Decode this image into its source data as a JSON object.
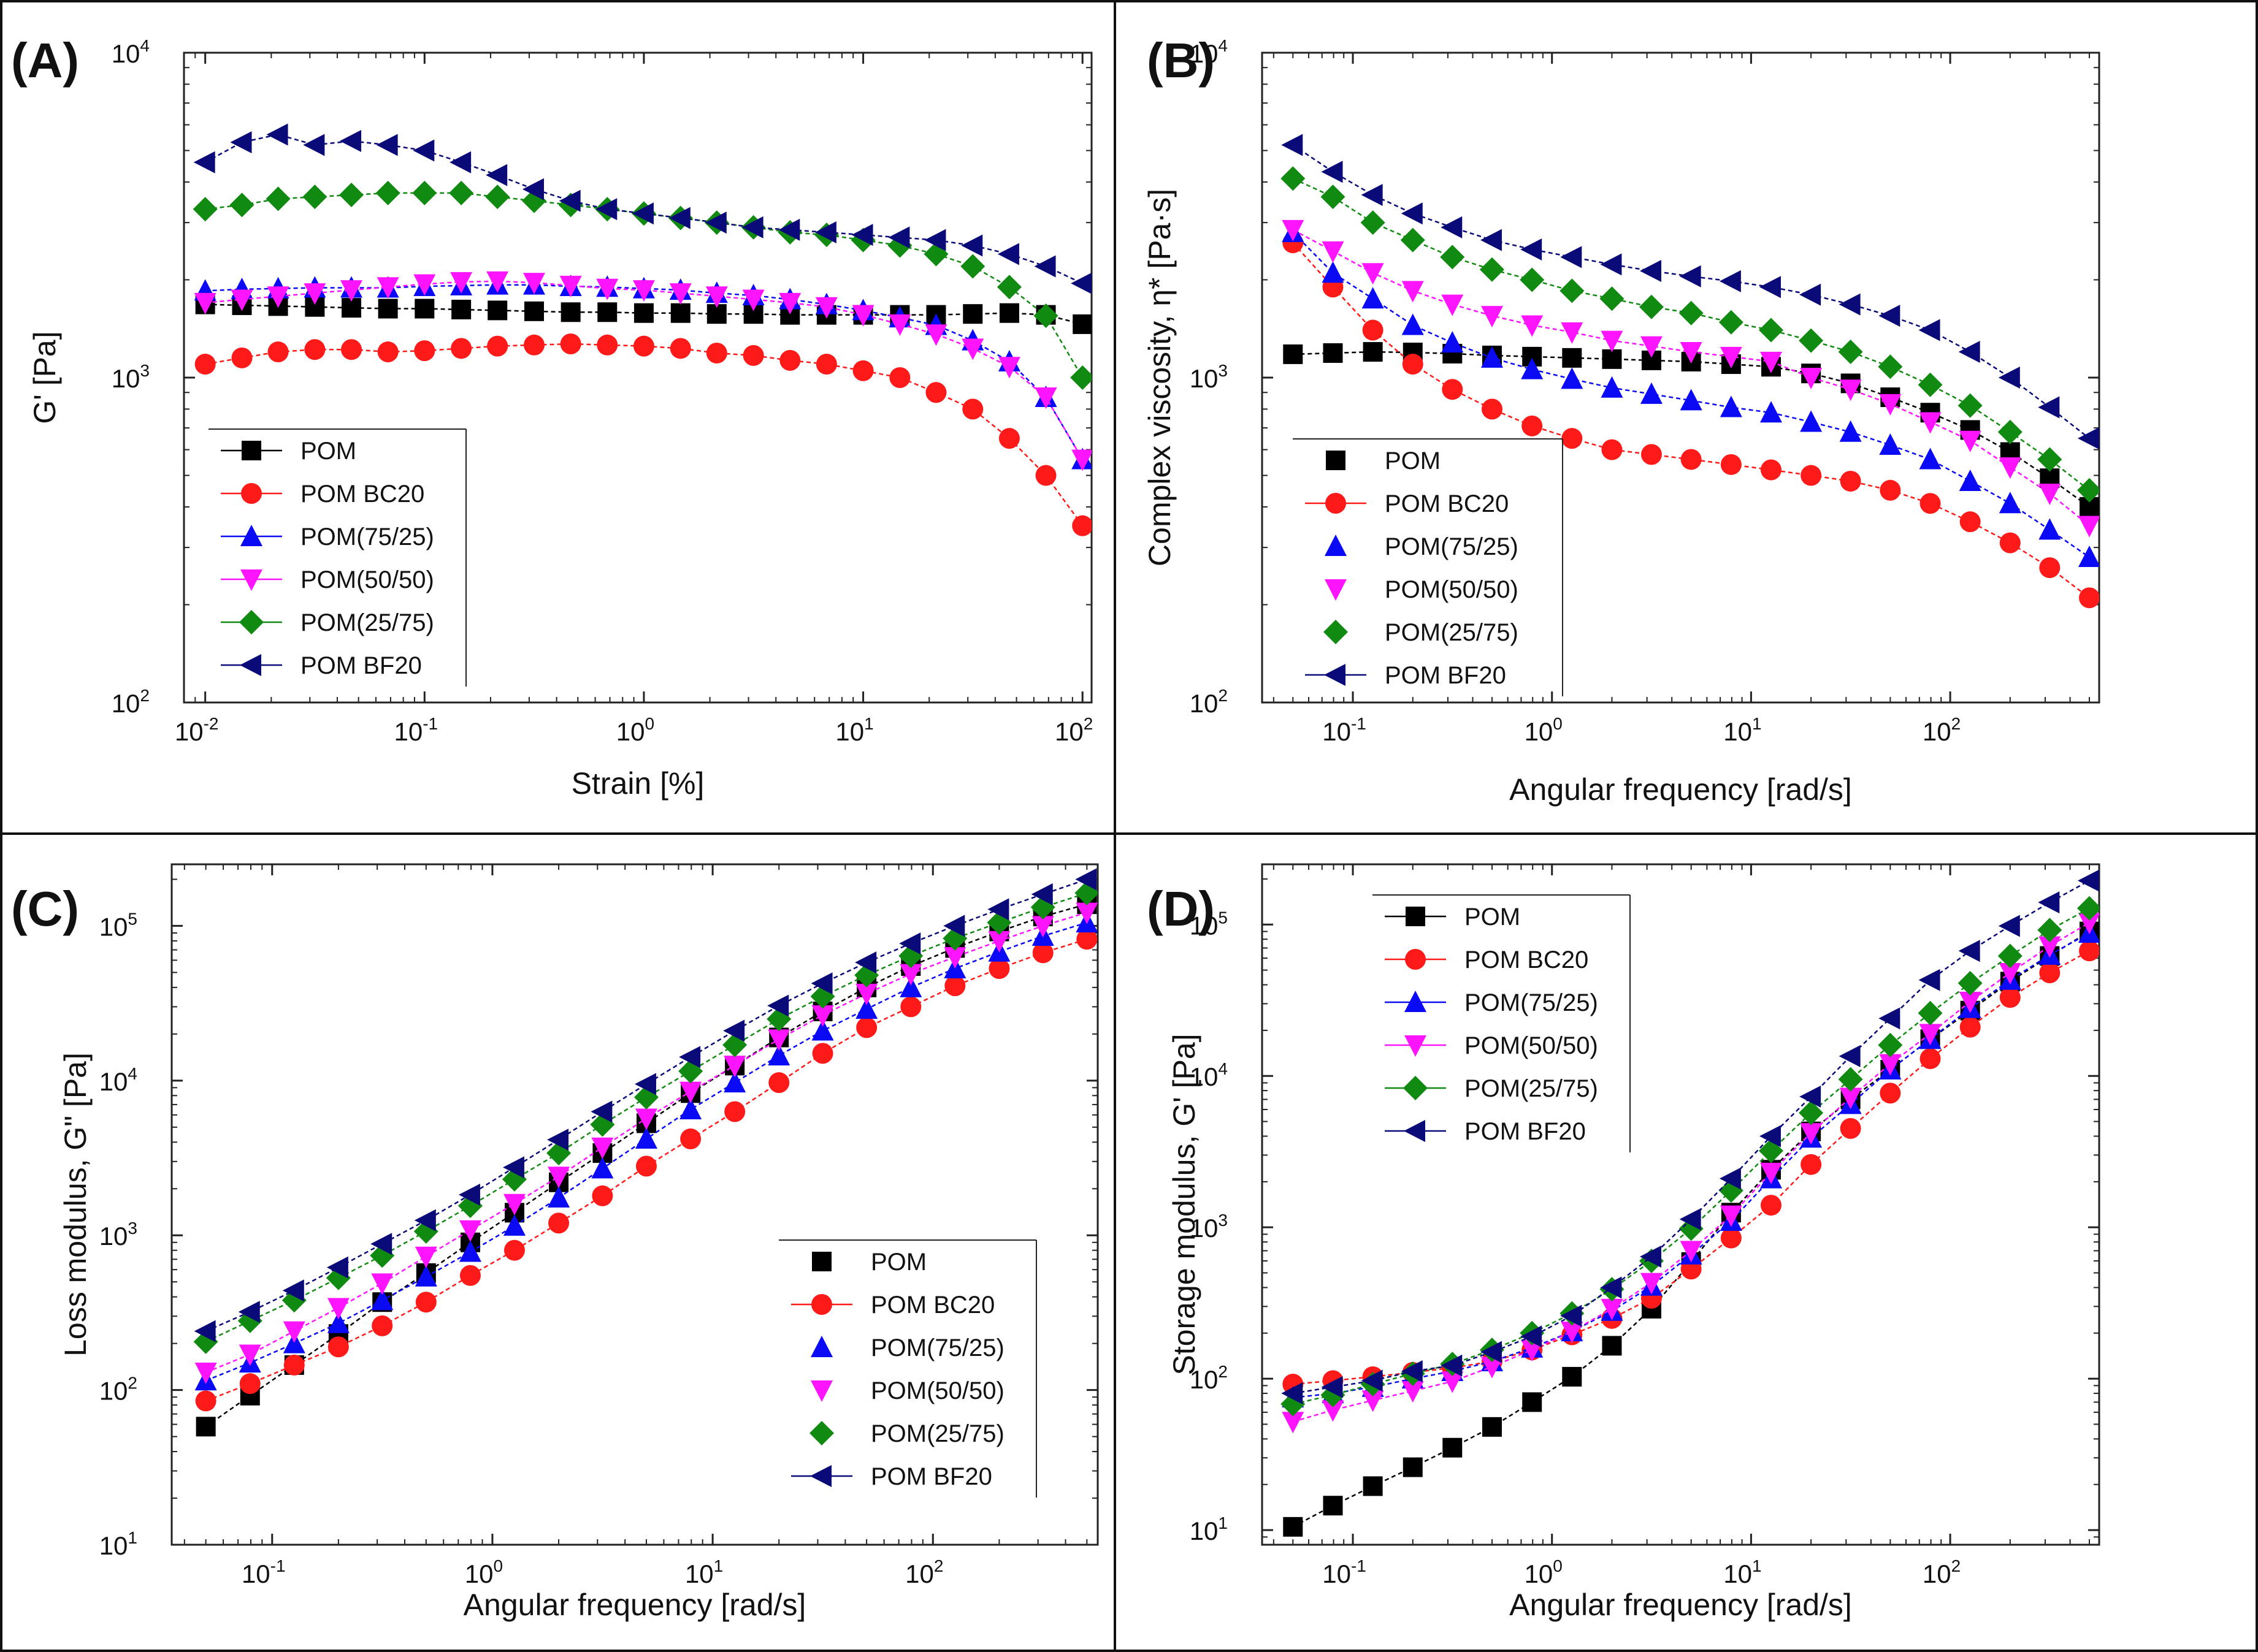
{
  "colors": {
    "POM": "#000000",
    "POM BC20": "#ff1a1a",
    "POM(75/25)": "#0a0af5",
    "POM(50/50)": "#ff14ff",
    "POM(25/75)": "#118a11",
    "POM BF20": "#0a0a78"
  },
  "chart_data": [
    {
      "type": "line",
      "panel": "(A)",
      "xlabel": "Strain [%]",
      "ylabel": "G' [Pa]",
      "xscale": "log",
      "yscale": "log",
      "xlim": [
        0.008,
        110
      ],
      "ylim": [
        100,
        10000
      ],
      "xticks": [
        {
          "b": "10",
          "e": "-2"
        },
        {
          "b": "10",
          "e": "-1"
        },
        {
          "b": "10",
          "e": "0"
        },
        {
          "b": "10",
          "e": "1"
        },
        {
          "b": "10",
          "e": "2"
        }
      ],
      "yticks": [
        {
          "b": "10",
          "e": "2"
        },
        {
          "b": "10",
          "e": "3"
        },
        {
          "b": "10",
          "e": "4"
        }
      ],
      "legend_position": "bottom-left",
      "x": [
        0.01,
        0.0147,
        0.0215,
        0.0316,
        0.0464,
        0.0681,
        0.1,
        0.147,
        0.215,
        0.316,
        0.464,
        0.681,
        1,
        1.47,
        2.15,
        3.16,
        4.64,
        6.81,
        10,
        14.7,
        21.5,
        31.6,
        46.4,
        68.1,
        100
      ],
      "series": [
        {
          "name": "POM",
          "marker": "square",
          "values": [
            1680,
            1670,
            1660,
            1650,
            1640,
            1630,
            1630,
            1620,
            1610,
            1600,
            1590,
            1590,
            1580,
            1580,
            1570,
            1570,
            1560,
            1560,
            1560,
            1560,
            1560,
            1570,
            1580,
            1560,
            1460
          ]
        },
        {
          "name": "POM BC20",
          "marker": "circle",
          "values": [
            1100,
            1150,
            1200,
            1220,
            1220,
            1200,
            1210,
            1230,
            1250,
            1260,
            1270,
            1260,
            1250,
            1230,
            1190,
            1170,
            1130,
            1100,
            1050,
            1000,
            900,
            800,
            650,
            500,
            350
          ]
        },
        {
          "name": "POM(75/25)",
          "marker": "triangle-up",
          "values": [
            1850,
            1870,
            1880,
            1890,
            1890,
            1890,
            1910,
            1920,
            1930,
            1930,
            1910,
            1900,
            1880,
            1860,
            1820,
            1790,
            1740,
            1680,
            1610,
            1530,
            1450,
            1300,
            1120,
            870,
            560
          ]
        },
        {
          "name": "POM(50/50)",
          "marker": "triangle-down",
          "values": [
            1700,
            1740,
            1780,
            1820,
            1860,
            1900,
            1940,
            1970,
            1980,
            1960,
            1920,
            1880,
            1860,
            1820,
            1780,
            1740,
            1700,
            1650,
            1560,
            1460,
            1360,
            1230,
            1080,
            870,
            560
          ]
        },
        {
          "name": "POM(25/75)",
          "marker": "diamond",
          "values": [
            3300,
            3400,
            3550,
            3600,
            3650,
            3700,
            3700,
            3700,
            3600,
            3500,
            3400,
            3300,
            3200,
            3100,
            3000,
            2900,
            2800,
            2750,
            2650,
            2550,
            2400,
            2200,
            1900,
            1550,
            1000
          ]
        },
        {
          "name": "POM BF20",
          "marker": "triangle-left",
          "values": [
            4600,
            5300,
            5600,
            5200,
            5350,
            5200,
            5000,
            4600,
            4200,
            3800,
            3500,
            3300,
            3200,
            3100,
            3000,
            2900,
            2850,
            2800,
            2750,
            2700,
            2650,
            2550,
            2400,
            2200,
            1950
          ]
        }
      ]
    },
    {
      "type": "line",
      "panel": "(B)",
      "xlabel": "Angular frequency [rad/s]",
      "ylabel": "Complex viscosity, η* [Pa·s]",
      "xscale": "log",
      "yscale": "log",
      "xlim": [
        0.035,
        560
      ],
      "ylim": [
        100,
        10000
      ],
      "xticks": [
        {
          "b": "10",
          "e": "-1"
        },
        {
          "b": "10",
          "e": "0"
        },
        {
          "b": "10",
          "e": "1"
        },
        {
          "b": "10",
          "e": "2"
        }
      ],
      "yticks": [
        {
          "b": "10",
          "e": "2"
        },
        {
          "b": "10",
          "e": "3"
        },
        {
          "b": "10",
          "e": "4"
        }
      ],
      "legend_position": "bottom-left",
      "x": [
        0.05,
        0.0794,
        0.126,
        0.2,
        0.316,
        0.5,
        0.794,
        1.26,
        2,
        3.16,
        5,
        7.94,
        12.6,
        20,
        31.6,
        50,
        79.4,
        126,
        200,
        316,
        500
      ],
      "series": [
        {
          "name": "POM",
          "marker": "square",
          "values": [
            1180,
            1190,
            1200,
            1195,
            1185,
            1170,
            1160,
            1150,
            1140,
            1130,
            1120,
            1100,
            1080,
            1030,
            960,
            870,
            780,
            690,
            590,
            490,
            400
          ]
        },
        {
          "name": "POM BC20",
          "marker": "circle",
          "values": [
            2600,
            1900,
            1400,
            1100,
            920,
            800,
            710,
            650,
            600,
            580,
            560,
            540,
            520,
            500,
            480,
            450,
            410,
            360,
            310,
            260,
            210
          ]
        },
        {
          "name": "POM(75/25)",
          "marker": "triangle-up",
          "values": [
            2800,
            2100,
            1750,
            1450,
            1280,
            1150,
            1060,
            990,
            930,
            890,
            850,
            810,
            780,
            730,
            680,
            620,
            560,
            480,
            410,
            340,
            280
          ]
        },
        {
          "name": "POM(50/50)",
          "marker": "triangle-down",
          "values": [
            2850,
            2450,
            2100,
            1850,
            1680,
            1550,
            1450,
            1380,
            1300,
            1250,
            1200,
            1160,
            1120,
            1000,
            920,
            830,
            730,
            640,
            530,
            440,
            350
          ]
        },
        {
          "name": "POM(25/75)",
          "marker": "diamond",
          "values": [
            4100,
            3600,
            3000,
            2650,
            2350,
            2150,
            2000,
            1850,
            1750,
            1650,
            1580,
            1480,
            1400,
            1300,
            1200,
            1080,
            950,
            820,
            680,
            560,
            450
          ]
        },
        {
          "name": "POM BF20",
          "marker": "triangle-left",
          "values": [
            5200,
            4300,
            3650,
            3200,
            2900,
            2650,
            2480,
            2350,
            2230,
            2130,
            2050,
            1980,
            1900,
            1800,
            1680,
            1550,
            1400,
            1200,
            1000,
            810,
            650
          ]
        }
      ]
    },
    {
      "type": "line",
      "panel": "(C)",
      "xlabel": "Angular frequency [rad/s]",
      "ylabel": "Loss modulus, G\" [Pa]",
      "xscale": "log",
      "yscale": "log",
      "xlim": [
        0.035,
        560
      ],
      "ylim": [
        10,
        250000
      ],
      "xticks": [
        {
          "b": "10",
          "e": "-1"
        },
        {
          "b": "10",
          "e": "0"
        },
        {
          "b": "10",
          "e": "1"
        },
        {
          "b": "10",
          "e": "2"
        }
      ],
      "yticks": [
        {
          "b": "10",
          "e": "1"
        },
        {
          "b": "10",
          "e": "2"
        },
        {
          "b": "10",
          "e": "3"
        },
        {
          "b": "10",
          "e": "4"
        },
        {
          "b": "10",
          "e": "5"
        }
      ],
      "legend_position": "bottom-right",
      "x": [
        0.05,
        0.0794,
        0.126,
        0.2,
        0.316,
        0.5,
        0.794,
        1.26,
        2,
        3.16,
        5,
        7.94,
        12.6,
        20,
        31.6,
        50,
        79.4,
        126,
        200,
        316,
        500
      ],
      "series": [
        {
          "name": "POM",
          "marker": "square",
          "values": [
            58,
            92,
            145,
            230,
            370,
            570,
            900,
            1400,
            2200,
            3400,
            5300,
            8300,
            12500,
            19000,
            28000,
            40000,
            55000,
            72000,
            92000,
            115000,
            138000
          ]
        },
        {
          "name": "POM BC20",
          "marker": "circle",
          "values": [
            85,
            110,
            145,
            190,
            260,
            370,
            550,
            800,
            1200,
            1800,
            2800,
            4200,
            6300,
            9700,
            15000,
            22000,
            30000,
            41000,
            53000,
            67000,
            82000
          ]
        },
        {
          "name": "POM(75/25)",
          "marker": "triangle-up",
          "values": [
            115,
            150,
            200,
            270,
            380,
            540,
            780,
            1150,
            1750,
            2700,
            4200,
            6500,
            9700,
            14500,
            21000,
            29000,
            40000,
            53000,
            68000,
            86000,
            105000
          ]
        },
        {
          "name": "POM(50/50)",
          "marker": "triangle-down",
          "values": [
            130,
            170,
            240,
            340,
            490,
            730,
            1080,
            1600,
            2400,
            3700,
            5700,
            8500,
            12500,
            18500,
            26500,
            36500,
            49000,
            63000,
            80000,
            100000,
            122000
          ]
        },
        {
          "name": "POM(25/75)",
          "marker": "diamond",
          "values": [
            205,
            280,
            380,
            530,
            740,
            1060,
            1550,
            2300,
            3400,
            5200,
            7800,
            11500,
            17000,
            25000,
            35000,
            48000,
            64000,
            83000,
            105000,
            132000,
            163000
          ]
        },
        {
          "name": "POM BF20",
          "marker": "triangle-left",
          "values": [
            240,
            320,
            440,
            620,
            880,
            1250,
            1830,
            2750,
            4150,
            6300,
            9500,
            14200,
            21000,
            30500,
            42500,
            58000,
            77000,
            100000,
            128000,
            160000,
            200000
          ]
        }
      ]
    },
    {
      "type": "line",
      "panel": "(D)",
      "xlabel": "Angular frequency [rad/s]",
      "ylabel": "Storage modulus, G' [Pa]",
      "xscale": "log",
      "yscale": "log",
      "xlim": [
        0.035,
        560
      ],
      "ylim": [
        8,
        250000
      ],
      "xticks": [
        {
          "b": "10",
          "e": "-1"
        },
        {
          "b": "10",
          "e": "0"
        },
        {
          "b": "10",
          "e": "1"
        },
        {
          "b": "10",
          "e": "2"
        }
      ],
      "yticks": [
        {
          "b": "10",
          "e": "1"
        },
        {
          "b": "10",
          "e": "2"
        },
        {
          "b": "10",
          "e": "3"
        },
        {
          "b": "10",
          "e": "4"
        },
        {
          "b": "10",
          "e": "5"
        }
      ],
      "legend_position": "top-left",
      "x": [
        0.05,
        0.0794,
        0.126,
        0.2,
        0.316,
        0.5,
        0.794,
        1.26,
        2,
        3.16,
        5,
        7.94,
        12.6,
        20,
        31.6,
        50,
        79.4,
        126,
        200,
        316,
        500
      ],
      "series": [
        {
          "name": "POM",
          "marker": "square",
          "values": [
            10.5,
            14.5,
            19.5,
            26,
            35,
            48,
            70,
            103,
            165,
            290,
            590,
            1250,
            2400,
            4300,
            7000,
            11000,
            17500,
            27000,
            42000,
            62000,
            90000
          ]
        },
        {
          "name": "POM BC20",
          "marker": "circle",
          "values": [
            92,
            97,
            103,
            110,
            118,
            130,
            155,
            195,
            250,
            340,
            530,
            850,
            1400,
            2600,
            4500,
            7700,
            13000,
            21000,
            33000,
            48000,
            67000
          ]
        },
        {
          "name": "POM(75/25)",
          "marker": "triangle-up",
          "values": [
            75,
            80,
            88,
            100,
            112,
            130,
            160,
            205,
            280,
            410,
            660,
            1100,
            2100,
            3900,
            6500,
            11000,
            17500,
            28000,
            43000,
            63000,
            88000
          ]
        },
        {
          "name": "POM(50/50)",
          "marker": "triangle-down",
          "values": [
            52,
            62,
            72,
            83,
            96,
            120,
            155,
            205,
            290,
            430,
            700,
            1200,
            2300,
            4200,
            7200,
            12000,
            19000,
            31000,
            48000,
            72000,
            103000
          ]
        },
        {
          "name": "POM(25/75)",
          "marker": "diamond",
          "values": [
            68,
            78,
            92,
            108,
            125,
            155,
            200,
            270,
            390,
            600,
            980,
            1750,
            3200,
            5700,
            9500,
            16000,
            26000,
            41000,
            62000,
            92000,
            128000
          ]
        },
        {
          "name": "POM BF20",
          "marker": "triangle-left",
          "values": [
            80,
            88,
            97,
            112,
            122,
            150,
            190,
            260,
            400,
            640,
            1130,
            2100,
            4000,
            7300,
            13500,
            24000,
            43000,
            67000,
            98000,
            140000,
            195000
          ]
        }
      ]
    }
  ]
}
